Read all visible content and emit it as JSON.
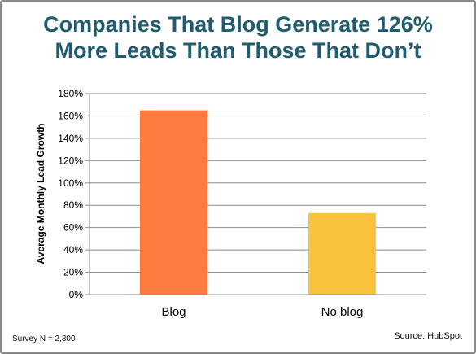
{
  "chart_data": {
    "type": "bar",
    "title_lines": [
      "Companies That Blog Generate 126%",
      "More Leads Than Those That Don’t"
    ],
    "categories": [
      "Blog",
      "No blog"
    ],
    "values": [
      165,
      73
    ],
    "ylabel": "Average Monthly Lead Growth",
    "xlabel": "",
    "ylim": [
      0,
      180
    ],
    "yticks": [
      0,
      20,
      40,
      60,
      80,
      100,
      120,
      140,
      160,
      180
    ],
    "ytick_labels": [
      "0%",
      "20%",
      "40%",
      "60%",
      "80%",
      "100%",
      "120%",
      "140%",
      "160%",
      "180%"
    ],
    "bar_colors": [
      "#ff7b3d",
      "#fbc23c"
    ],
    "grid": true,
    "legend": "none"
  },
  "footnotes": {
    "survey": "Survey N = 2,300",
    "source": "Source: HubSpot"
  }
}
